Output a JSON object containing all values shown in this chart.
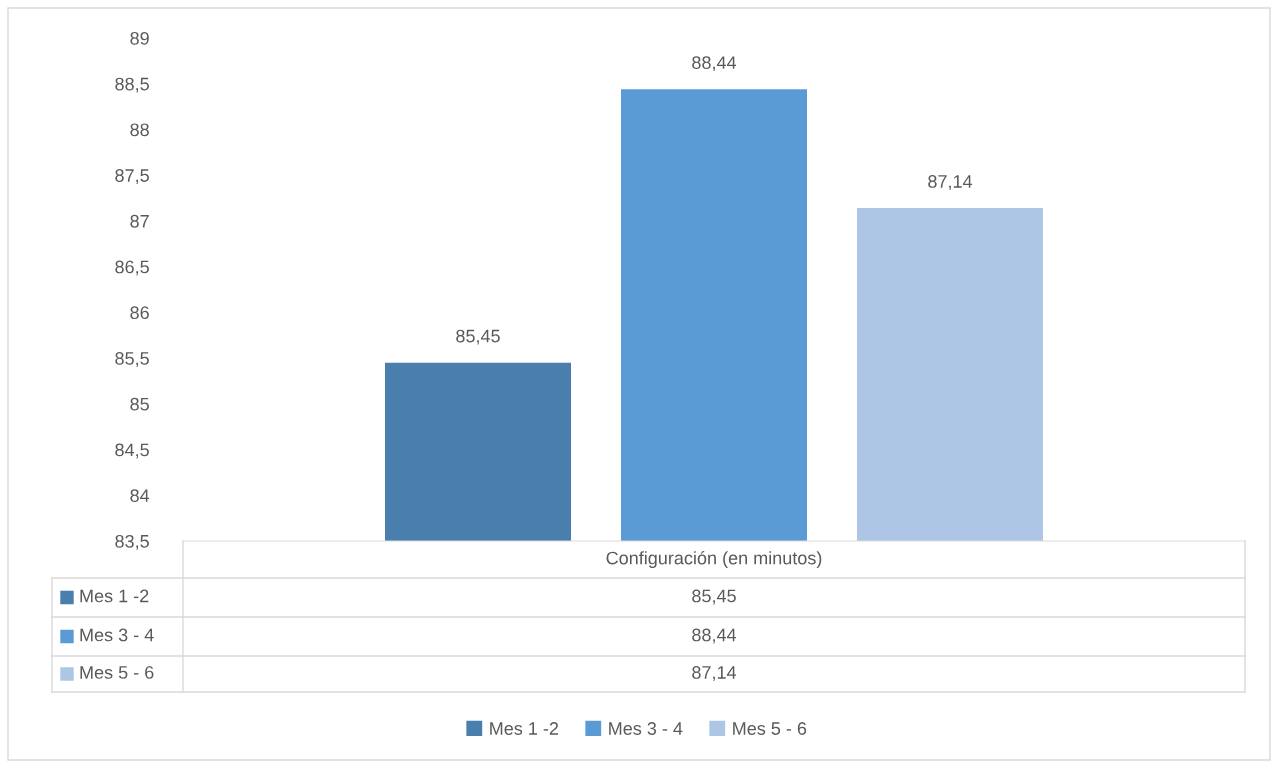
{
  "chart_data": {
    "type": "bar",
    "categories": [
      "Configuración (en minutos)"
    ],
    "series": [
      {
        "name": "Mes 1 -2",
        "color": "#4a7ead",
        "values": [
          85.45
        ],
        "value_labels": [
          "85,45"
        ]
      },
      {
        "name": "Mes 3 - 4",
        "color": "#5b9bd5",
        "values": [
          88.44
        ],
        "value_labels": [
          "88,44"
        ]
      },
      {
        "name": "Mes 5 - 6",
        "color": "#adc6e5",
        "values": [
          87.14
        ],
        "value_labels": [
          "87,14"
        ]
      }
    ],
    "ylim": [
      83.5,
      89
    ],
    "yticks": [
      {
        "value": 83.5,
        "label": "83,5"
      },
      84,
      {
        "value": 84.5,
        "label": "84,5"
      },
      85,
      {
        "value": 85.5,
        "label": "85,5"
      },
      86,
      {
        "value": 86.5,
        "label": "86,5"
      },
      87,
      {
        "value": 87.5,
        "label": "87,5"
      },
      88,
      {
        "value": 88.5,
        "label": "88,5"
      },
      89
    ],
    "grid": false,
    "legend": "bottom"
  }
}
